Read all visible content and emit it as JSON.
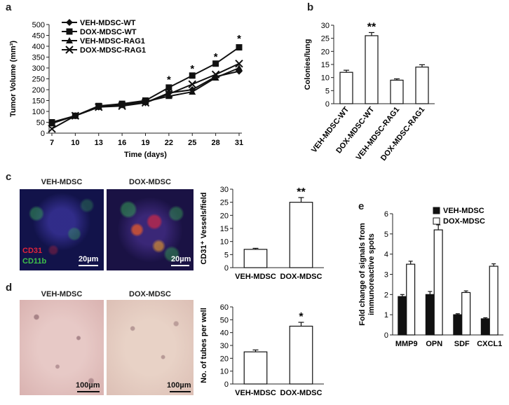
{
  "panels": {
    "a": {
      "label": "a",
      "chart_data": {
        "type": "line",
        "xlabel": "Time (days)",
        "ylabel": "Tumor Volume (mm³)",
        "ylim": [
          0,
          500
        ],
        "xlim": [
          7,
          31
        ],
        "yticks": [
          "0",
          "50",
          "100",
          "150",
          "200",
          "250",
          "300",
          "350",
          "400",
          "450",
          "500"
        ],
        "xticks": [
          "7",
          "10",
          "13",
          "16",
          "19",
          "22",
          "25",
          "28",
          "31"
        ],
        "x": [
          7,
          10,
          13,
          16,
          19,
          22,
          25,
          28,
          31
        ],
        "series": [
          {
            "name": "VEH-MDSC-WT",
            "marker": "diamond",
            "values": [
              45,
              80,
              120,
              130,
              140,
              185,
              200,
              260,
              285
            ]
          },
          {
            "name": "DOX-MDSC-WT",
            "marker": "square",
            "values": [
              50,
              80,
              125,
              135,
              150,
              210,
              265,
              320,
              395
            ]
          },
          {
            "name": "VEH-MDSC-RAG1",
            "marker": "triangle",
            "values": [
              45,
              80,
              120,
              130,
              145,
              170,
              190,
              255,
              300
            ]
          },
          {
            "name": "DOX-MDSC-RAG1",
            "marker": "x",
            "values": [
              20,
              80,
              120,
              125,
              140,
              180,
              225,
              270,
              320
            ]
          }
        ],
        "significance": [
          {
            "x": 22,
            "y": 230,
            "label": "*"
          },
          {
            "x": 25,
            "y": 280,
            "label": "*"
          },
          {
            "x": 28,
            "y": 335,
            "label": "*"
          },
          {
            "x": 31,
            "y": 420,
            "label": "*"
          }
        ],
        "legend_position": "top-left"
      }
    },
    "b": {
      "label": "b",
      "chart_data": {
        "type": "bar",
        "ylabel": "Colonies/lung",
        "ylim": [
          0,
          30
        ],
        "yticks": [
          "0",
          "5",
          "10",
          "15",
          "20",
          "25",
          "30"
        ],
        "categories": [
          "VEH-MDSC-WT",
          "DOX-MDSC-WT",
          "VEH-MDSC-RAG1",
          "DOX-MDSC-RAG1"
        ],
        "values": [
          12,
          26,
          9,
          14
        ],
        "errors": [
          0.8,
          1.2,
          0.5,
          0.9
        ],
        "significance": [
          {
            "index": 1,
            "label": "**"
          }
        ]
      }
    },
    "c": {
      "label": "c",
      "images": [
        {
          "title": "VEH-MDSC",
          "scale": "20µm",
          "stains": [
            "CD31",
            "CD11b"
          ]
        },
        {
          "title": "DOX-MDSC",
          "scale": "20µm"
        }
      ],
      "chart_data": {
        "type": "bar",
        "ylabel": "CD31⁺ Vessels/field",
        "ylim": [
          0,
          30
        ],
        "yticks": [
          "0",
          "5",
          "10",
          "15",
          "20",
          "25",
          "30"
        ],
        "categories": [
          "VEH-MDSC",
          "DOX-MDSC"
        ],
        "values": [
          7,
          25
        ],
        "errors": [
          0.4,
          1.8
        ],
        "significance": [
          {
            "index": 1,
            "label": "**"
          }
        ]
      }
    },
    "d": {
      "label": "d",
      "images": [
        {
          "title": "VEH-MDSC",
          "scale": "100µm"
        },
        {
          "title": "DOX-MDSC",
          "scale": "100µm"
        }
      ],
      "chart_data": {
        "type": "bar",
        "ylabel": "No. of tubes per well",
        "ylim": [
          0,
          60
        ],
        "yticks": [
          "0",
          "10",
          "20",
          "30",
          "40",
          "50",
          "60"
        ],
        "categories": [
          "VEH-MDSC",
          "DOX-MDSC"
        ],
        "values": [
          25,
          45
        ],
        "errors": [
          1.5,
          3
        ],
        "significance": [
          {
            "index": 1,
            "label": "*"
          }
        ]
      }
    },
    "e": {
      "label": "e",
      "chart_data": {
        "type": "bar",
        "ylabel": "Fold change of signals from immunoreactive spots",
        "ylim": [
          0,
          6
        ],
        "yticks": [
          "0",
          "1",
          "2",
          "3",
          "4",
          "5",
          "6"
        ],
        "categories": [
          "MMP9",
          "OPN",
          "SDF",
          "CXCL1"
        ],
        "series": [
          {
            "name": "VEH-MDSC",
            "color": "#111111",
            "values": [
              1.9,
              2.0,
              1.0,
              0.8
            ],
            "errors": [
              0.1,
              0.15,
              0.05,
              0.05
            ]
          },
          {
            "name": "DOX-MDSC",
            "color": "#ffffff",
            "values": [
              3.5,
              5.2,
              2.1,
              3.4
            ],
            "errors": [
              0.15,
              0.25,
              0.08,
              0.12
            ]
          }
        ],
        "legend_position": "top-right"
      }
    }
  }
}
